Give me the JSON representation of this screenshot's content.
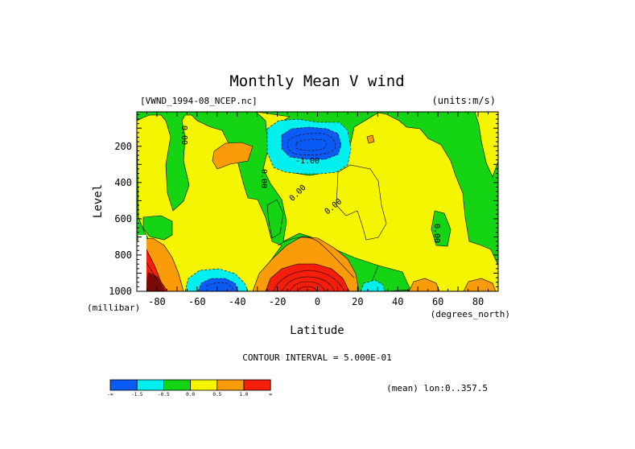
{
  "chart_data": {
    "type": "heatmap",
    "title": "Monthly Mean V wind",
    "dataset_label": "[VWND_1994-08_NCEP.nc]",
    "units_label": "(units:m/s)",
    "xlabel": "Latitude",
    "x_unit_label": "(degrees_north)",
    "ylabel": "Level",
    "y_unit_label": "(millibar)",
    "xlim": [
      -90,
      90
    ],
    "ylim": [
      1000,
      10
    ],
    "x_ticks": [
      "-80",
      "-60",
      "-40",
      "-20",
      "0",
      "20",
      "40",
      "60",
      "80"
    ],
    "y_ticks": [
      "200",
      "400",
      "600",
      "800",
      "1000"
    ],
    "contour_interval_label": "CONTOUR INTERVAL = 5.000E-01",
    "mean_label": "(mean) lon:0..357.5",
    "colorbar": {
      "labels": [
        "-∞",
        "-1.5",
        "-0.5",
        "0.0",
        "0.5",
        "1.0",
        "∞"
      ],
      "colors": [
        "#0a5af5",
        "#00f0f0",
        "#14d414",
        "#f5f500",
        "#fa9b0a",
        "#f51e0a"
      ]
    },
    "contour_labels": [
      "0.00",
      "0.00",
      "0.00",
      "0.00",
      "-1.00",
      "0.00"
    ],
    "regions": [
      {
        "lat": -82,
        "lev": 900,
        "category": "strong_positive"
      },
      {
        "lat": -55,
        "lev": 950,
        "category": "strong_negative"
      },
      {
        "lat": -5,
        "lev": 210,
        "category": "strong_negative"
      },
      {
        "lat": -5,
        "lev": 930,
        "category": "strong_positive"
      },
      {
        "lat": -45,
        "lev": 230,
        "category": "positive"
      },
      {
        "lat": 55,
        "lev": 980,
        "category": "positive"
      },
      {
        "lat": 82,
        "lev": 980,
        "category": "positive"
      }
    ]
  }
}
